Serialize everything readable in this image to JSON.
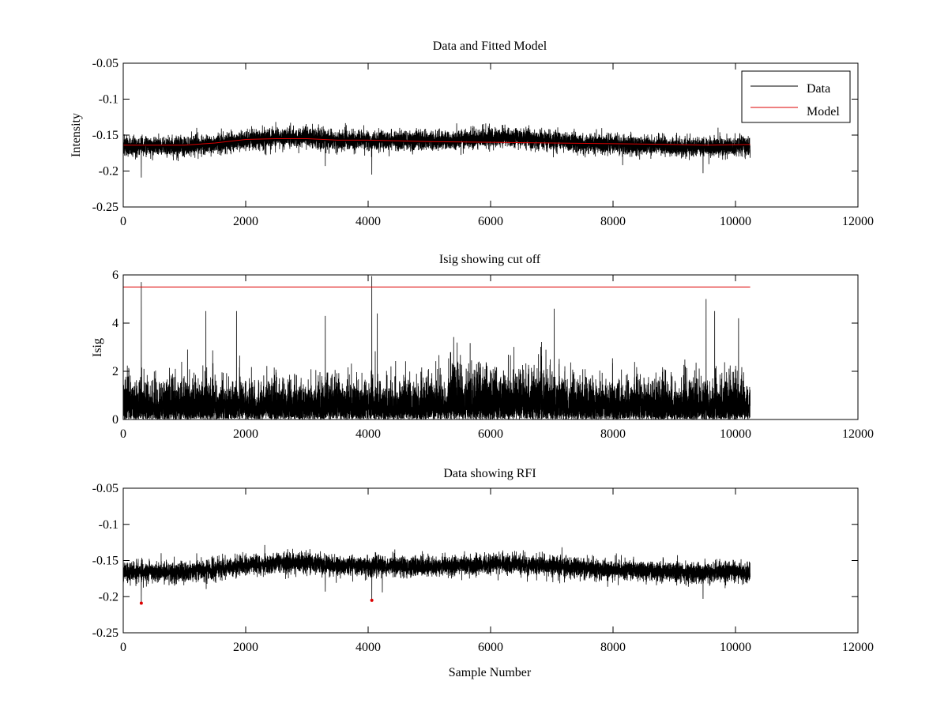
{
  "chart_data": [
    {
      "type": "line",
      "title": "Data and Fitted Model",
      "xlabel": "",
      "ylabel": "Intensity",
      "xlim": [
        0,
        12000
      ],
      "ylim": [
        -0.25,
        -0.05
      ],
      "y_reversed": true,
      "xticks": [
        0,
        2000,
        4000,
        6000,
        8000,
        10000,
        12000
      ],
      "xtick_labels": [
        "0",
        "2000",
        "4000",
        "6000",
        "8000",
        "10000",
        "12000"
      ],
      "yticks": [
        -0.05,
        -0.1,
        -0.15,
        -0.2,
        -0.25
      ],
      "ytick_labels": [
        "-0.05",
        "-0.1",
        "-0.15",
        "-0.2",
        "-0.25"
      ],
      "grid": false,
      "legend": {
        "position": "top-right",
        "entries": [
          "Data",
          "Model"
        ]
      },
      "series": [
        {
          "name": "Data",
          "color": "#000000",
          "kind": "noisy",
          "n": 10240,
          "baseline_x": [
            0,
            1000,
            1500,
            2000,
            2500,
            3000,
            3500,
            4000,
            5000,
            6000,
            6200,
            7000,
            8000,
            9000,
            9500,
            10240
          ],
          "baseline_y": [
            -0.166,
            -0.166,
            -0.162,
            -0.157,
            -0.154,
            -0.153,
            -0.158,
            -0.157,
            -0.158,
            -0.155,
            -0.153,
            -0.158,
            -0.163,
            -0.166,
            -0.167,
            -0.165
          ],
          "noise_std": 0.0065,
          "spikes": [
            {
              "x": 295,
              "y": -0.209
            },
            {
              "x": 4060,
              "y": -0.205
            },
            {
              "x": 3300,
              "y": -0.193
            },
            {
              "x": 9470,
              "y": -0.203
            },
            {
              "x": 1200,
              "y": -0.14
            },
            {
              "x": 6200,
              "y": -0.136
            }
          ]
        },
        {
          "name": "Model",
          "color": "#dd0000",
          "kind": "line",
          "x": [
            0,
            1000,
            1500,
            2000,
            2500,
            3000,
            3500,
            4000,
            5000,
            6000,
            7000,
            8000,
            9000,
            9500,
            10240
          ],
          "y": [
            -0.164,
            -0.164,
            -0.161,
            -0.156,
            -0.155,
            -0.155,
            -0.157,
            -0.157,
            -0.159,
            -0.16,
            -0.161,
            -0.162,
            -0.163,
            -0.164,
            -0.163
          ]
        }
      ]
    },
    {
      "type": "line",
      "title": "Isig showing cut off",
      "xlabel": "",
      "ylabel": "Isig",
      "xlim": [
        0,
        12000
      ],
      "ylim": [
        0,
        6
      ],
      "y_reversed": false,
      "xticks": [
        0,
        2000,
        4000,
        6000,
        8000,
        10000,
        12000
      ],
      "xtick_labels": [
        "0",
        "2000",
        "4000",
        "6000",
        "8000",
        "10000",
        "12000"
      ],
      "yticks": [
        0,
        2,
        4,
        6
      ],
      "ytick_labels": [
        "0",
        "2",
        "4",
        "6"
      ],
      "grid": false,
      "series": [
        {
          "name": "Isig",
          "color": "#000000",
          "kind": "abs_noise",
          "n": 10240,
          "scale": 0.75,
          "spikes": [
            {
              "x": 295,
              "y": 5.7
            },
            {
              "x": 4060,
              "y": 5.95
            },
            {
              "x": 9520,
              "y": 5.0
            },
            {
              "x": 1350,
              "y": 4.5
            },
            {
              "x": 1850,
              "y": 4.5
            },
            {
              "x": 3300,
              "y": 4.3
            },
            {
              "x": 4150,
              "y": 4.4
            },
            {
              "x": 7040,
              "y": 4.6
            },
            {
              "x": 9660,
              "y": 4.5
            },
            {
              "x": 10050,
              "y": 4.2
            }
          ]
        },
        {
          "name": "Cut off",
          "color": "#dd0000",
          "kind": "line",
          "x": [
            0,
            10240
          ],
          "y": [
            5.5,
            5.5
          ]
        }
      ]
    },
    {
      "type": "line",
      "title": "Data showing RFI",
      "xlabel": "Sample Number",
      "ylabel": "",
      "xlim": [
        0,
        12000
      ],
      "ylim": [
        -0.25,
        -0.05
      ],
      "y_reversed": true,
      "xticks": [
        0,
        2000,
        4000,
        6000,
        8000,
        10000,
        12000
      ],
      "xtick_labels": [
        "0",
        "2000",
        "4000",
        "6000",
        "8000",
        "10000",
        "12000"
      ],
      "yticks": [
        -0.05,
        -0.1,
        -0.15,
        -0.2,
        -0.25
      ],
      "ytick_labels": [
        "-0.05",
        "-0.1",
        "-0.15",
        "-0.2",
        "-0.25"
      ],
      "grid": false,
      "series": [
        {
          "name": "Data",
          "color": "#000000",
          "kind": "noisy",
          "n": 10240,
          "baseline_x": [
            0,
            1000,
            1500,
            2000,
            2500,
            3000,
            3500,
            4000,
            5000,
            6000,
            6200,
            7000,
            8000,
            9000,
            9500,
            10240
          ],
          "baseline_y": [
            -0.166,
            -0.166,
            -0.162,
            -0.157,
            -0.154,
            -0.153,
            -0.158,
            -0.157,
            -0.158,
            -0.155,
            -0.153,
            -0.158,
            -0.163,
            -0.166,
            -0.167,
            -0.165
          ],
          "noise_std": 0.0065,
          "spikes": [
            {
              "x": 295,
              "y": -0.209
            },
            {
              "x": 4060,
              "y": -0.205
            },
            {
              "x": 3300,
              "y": -0.193
            },
            {
              "x": 9470,
              "y": -0.203
            },
            {
              "x": 1200,
              "y": -0.14
            },
            {
              "x": 6200,
              "y": -0.136
            }
          ]
        },
        {
          "name": "RFI",
          "color": "#dd0000",
          "kind": "points",
          "x": [
            295,
            4060
          ],
          "y": [
            -0.209,
            -0.205
          ]
        }
      ]
    }
  ]
}
